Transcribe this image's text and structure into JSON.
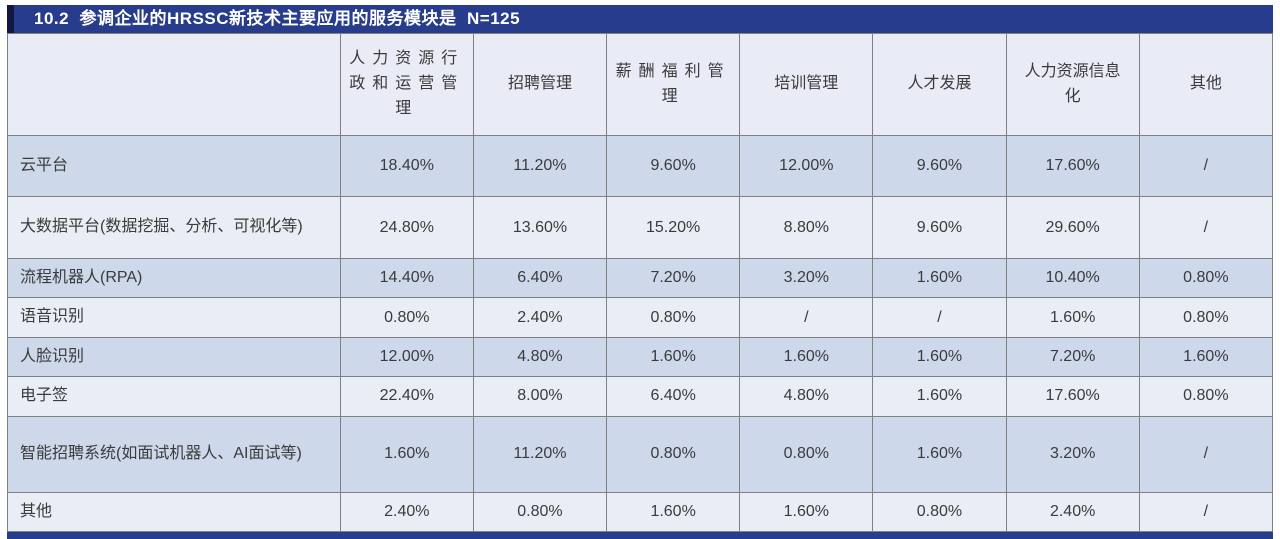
{
  "title": {
    "text": "10.2  参调企业的HRSSC新技术主要应用的服务模块是  N=125"
  },
  "colors": {
    "accent_navy": "#273c8c",
    "title_left_edge": "#12173f",
    "row_dark": "#cdd8ea",
    "row_light": "#e9edf6",
    "header_bg": "#e9ecf6",
    "border_gray": "#808080",
    "text": "#3b3b3b",
    "title_text": "#ffffff"
  },
  "table": {
    "columns": [
      {
        "label": "",
        "style": "label"
      },
      {
        "label": "人力资源行政和运营管理",
        "style": "justify"
      },
      {
        "label": "招聘管理",
        "style": "normal"
      },
      {
        "label": "薪酬福利管理",
        "style": "justify"
      },
      {
        "label": "培训管理",
        "style": "normal"
      },
      {
        "label": "人才发展",
        "style": "normal"
      },
      {
        "label": "人力资源信息化",
        "style": "narrow"
      },
      {
        "label": "其他",
        "style": "normal"
      }
    ],
    "rows": [
      {
        "label": "云平台",
        "values": [
          "18.40%",
          "11.20%",
          "9.60%",
          "12.00%",
          "9.60%",
          "17.60%",
          "/"
        ],
        "height": 61
      },
      {
        "label": "大数据平台(数据挖掘、分析、可视化等)",
        "values": [
          "24.80%",
          "13.60%",
          "15.20%",
          "8.80%",
          "9.60%",
          "29.60%",
          "/"
        ],
        "height": 62
      },
      {
        "label": "流程机器人(RPA)",
        "values": [
          "14.40%",
          "6.40%",
          "7.20%",
          "3.20%",
          "1.60%",
          "10.40%",
          "0.80%"
        ],
        "height": 32
      },
      {
        "label": "语音识别",
        "values": [
          "0.80%",
          "2.40%",
          "0.80%",
          "/",
          "/",
          "1.60%",
          "0.80%"
        ],
        "height": 33
      },
      {
        "label": "人脸识别",
        "values": [
          "12.00%",
          "4.80%",
          "1.60%",
          "1.60%",
          "1.60%",
          "7.20%",
          "1.60%"
        ],
        "height": 32
      },
      {
        "label": "电子签",
        "values": [
          "22.40%",
          "8.00%",
          "6.40%",
          "4.80%",
          "1.60%",
          "17.60%",
          "0.80%"
        ],
        "height": 33
      },
      {
        "label": "智能招聘系统(如面试机器人、AI面试等)",
        "values": [
          "1.60%",
          "11.20%",
          "0.80%",
          "0.80%",
          "1.60%",
          "3.20%",
          "/"
        ],
        "height": 76
      },
      {
        "label": "其他",
        "values": [
          "2.40%",
          "0.80%",
          "1.60%",
          "1.60%",
          "0.80%",
          "2.40%",
          "/"
        ],
        "height": 31
      }
    ],
    "label_col_width_pct": 26.3
  }
}
